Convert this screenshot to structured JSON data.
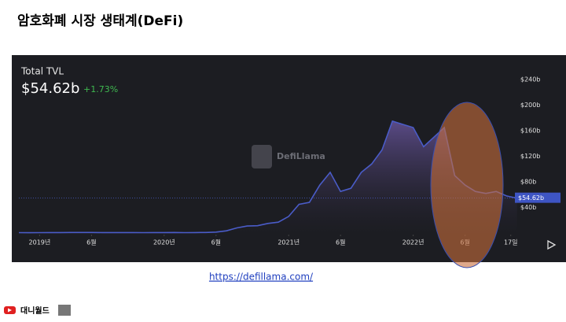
{
  "slide_title": "암호화폐 시장 생태계(DeFi)",
  "link": "https://defillama.com/",
  "footer": "대니월드",
  "chart_data": {
    "type": "line",
    "title": "Total TVL",
    "current": "$54.62b",
    "change": "+1.73%",
    "watermark": "DefiLlama",
    "series": [
      {
        "name": "TVL",
        "color": "#4a5cc8",
        "values": [
          0.6,
          0.5,
          0.6,
          0.7,
          0.8,
          0.9,
          0.9,
          0.9,
          0.8,
          0.7,
          0.7,
          0.7,
          0.6,
          0.7,
          0.8,
          0.9,
          0.6,
          0.8,
          0.9,
          1.5,
          3.5,
          8,
          11,
          11.5,
          15,
          17,
          26,
          45,
          48,
          75,
          95,
          65,
          70,
          95,
          108,
          130,
          175,
          170,
          165,
          135,
          150,
          165,
          90,
          75,
          65,
          62,
          65,
          58,
          54.62
        ]
      }
    ],
    "xlim": [
      0,
      48.3
    ],
    "xticks": [
      {
        "value": 2,
        "label": "2019년"
      },
      {
        "value": 7,
        "label": "6월"
      },
      {
        "value": 14,
        "label": "2020년"
      },
      {
        "value": 19,
        "label": "6월"
      },
      {
        "value": 26,
        "label": "2021년"
      },
      {
        "value": 31,
        "label": "6월"
      },
      {
        "value": 38,
        "label": "2022년"
      },
      {
        "value": 43,
        "label": "6월"
      },
      {
        "value": 47.4,
        "label": "17일"
      }
    ],
    "ylim": [
      0,
      266
    ],
    "yticks": [
      {
        "value": 40,
        "label": "$40b"
      },
      {
        "value": 80,
        "label": "$80b"
      },
      {
        "value": 120,
        "label": "$120b"
      },
      {
        "value": 160,
        "label": "$160b"
      },
      {
        "value": 200,
        "label": "$200b"
      },
      {
        "value": 240,
        "label": "$240b"
      }
    ]
  }
}
